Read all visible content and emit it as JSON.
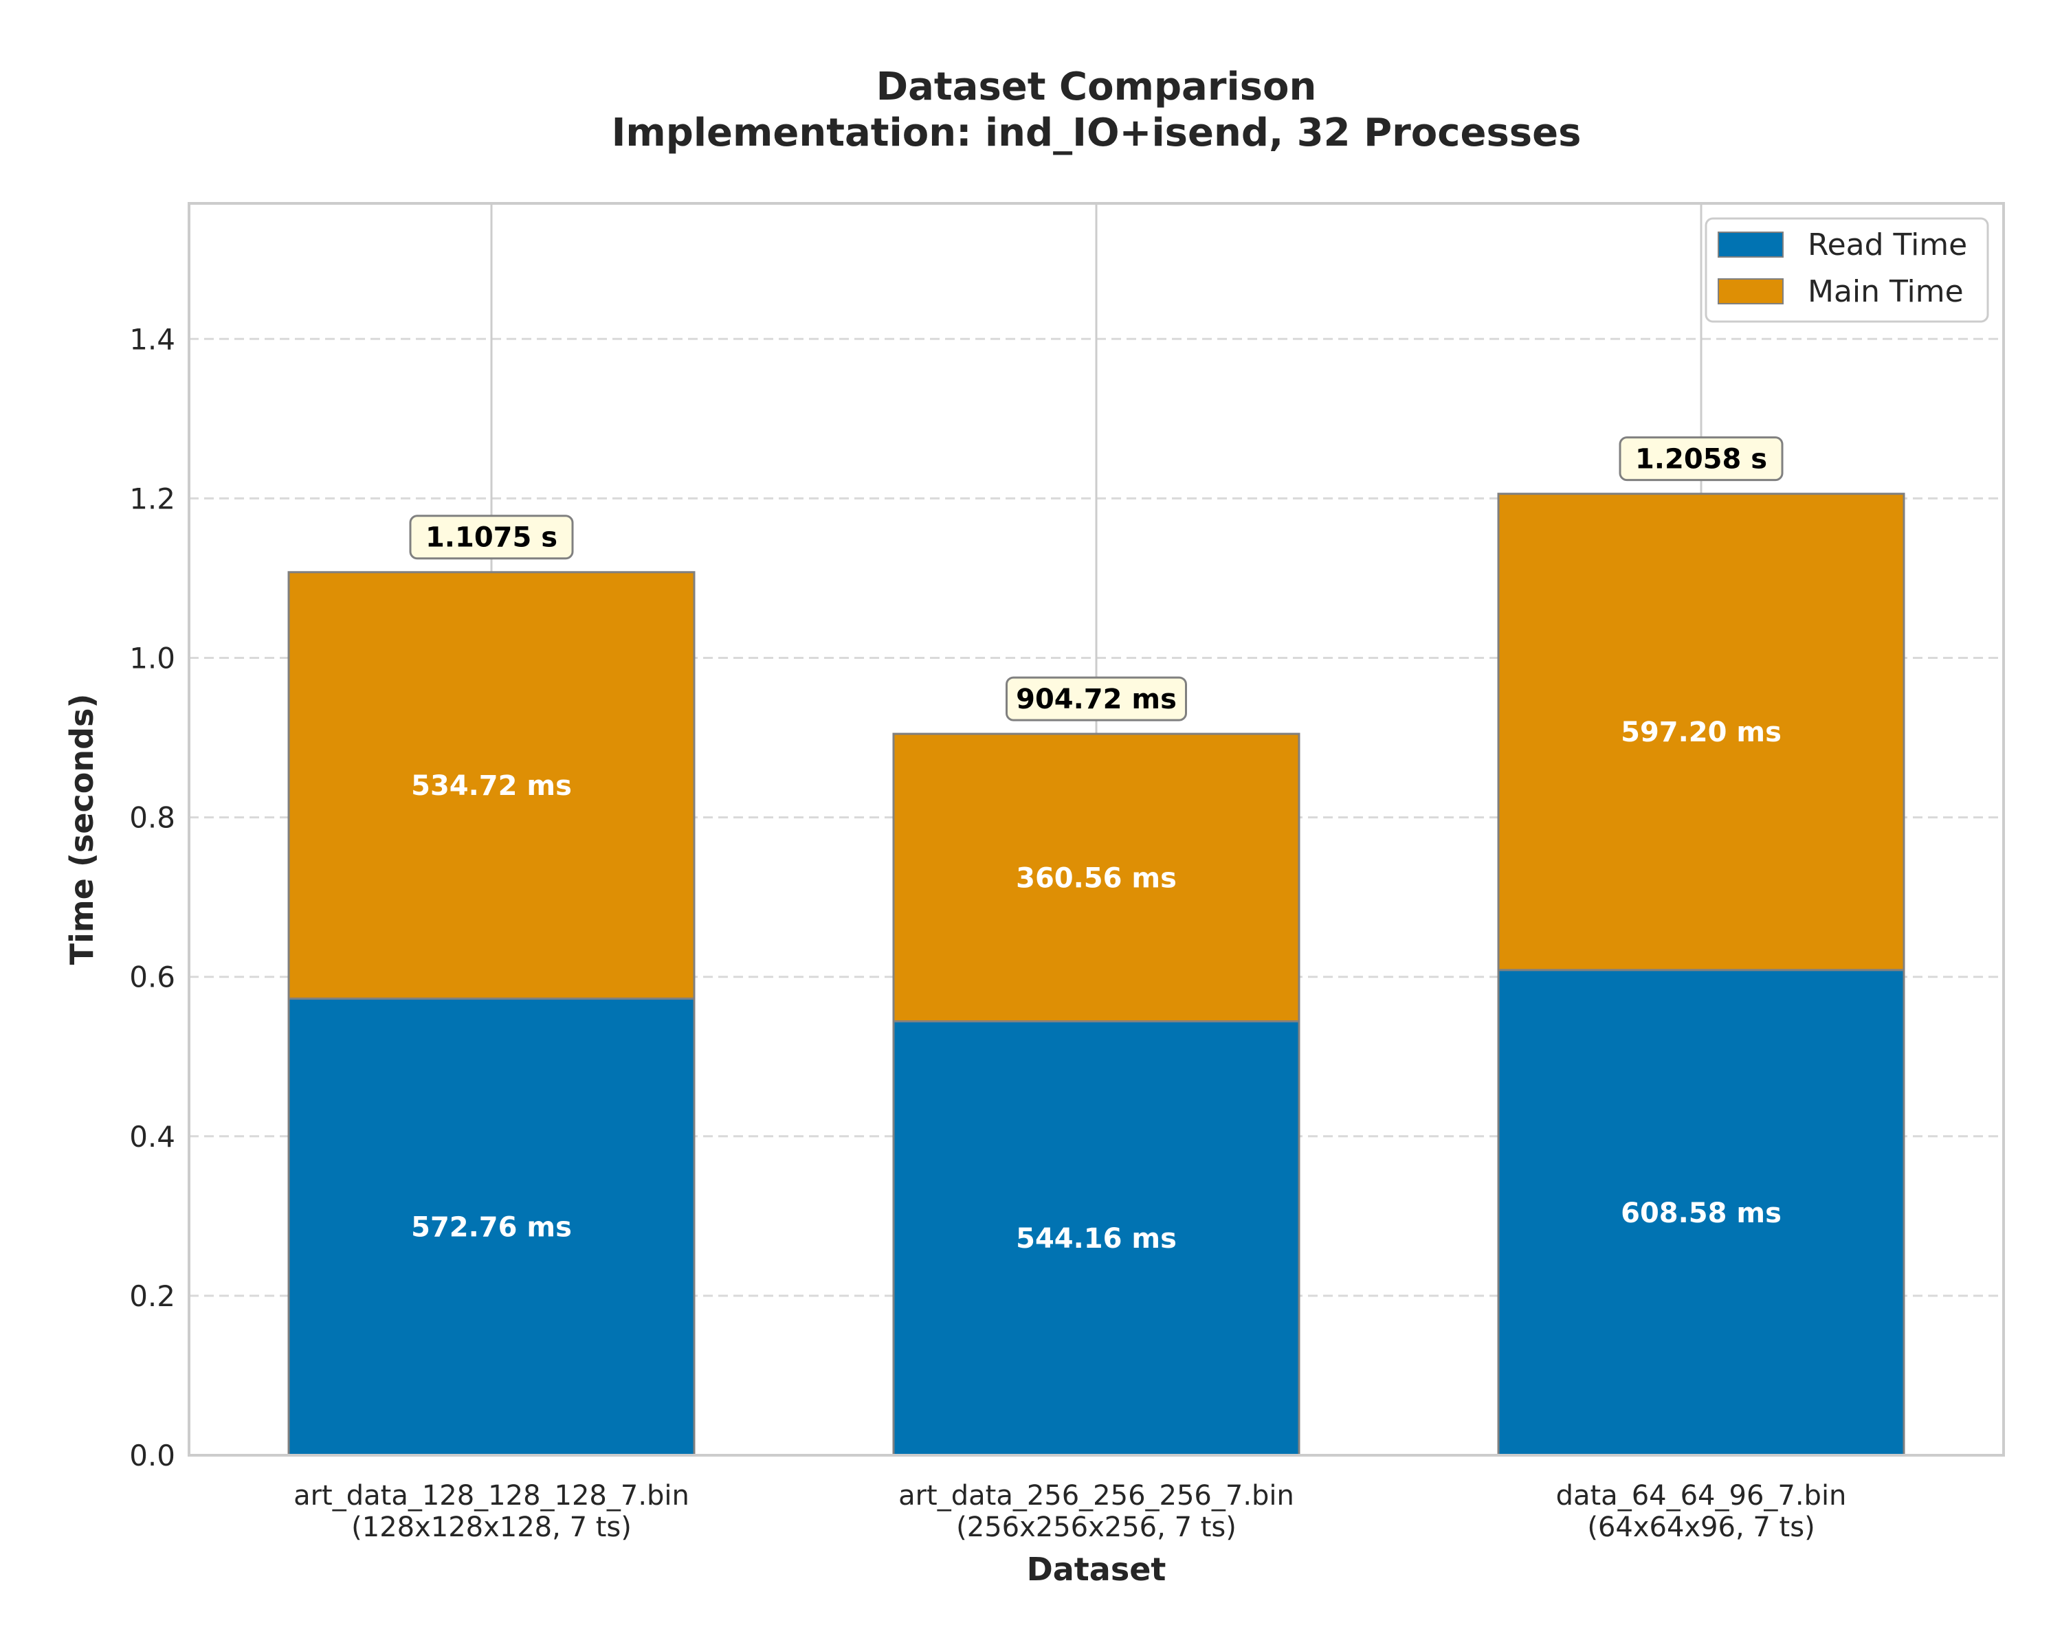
{
  "chart_data": {
    "type": "bar",
    "stacked": true,
    "title": "Dataset Comparison",
    "subtitle": "Implementation: ind_IO+isend, 32 Processes",
    "xlabel": "Dataset",
    "ylabel": "Time (seconds)",
    "ylim": [
      0,
      1.57
    ],
    "yticks": [
      "0.0",
      "0.2",
      "0.4",
      "0.6",
      "0.8",
      "1.0",
      "1.2",
      "1.4"
    ],
    "grid": "y-dashed",
    "legend_position": "top-right",
    "categories": [
      [
        "art_data_128_128_128_7.bin",
        "(128x128x128, 7 ts)"
      ],
      [
        "art_data_256_256_256_7.bin",
        "(256x256x256, 7 ts)"
      ],
      [
        "data_64_64_96_7.bin",
        "(64x64x96, 7 ts)"
      ]
    ],
    "series": [
      {
        "name": "Read Time",
        "color": "#0173b2",
        "values": [
          0.57276,
          0.54416,
          0.60858
        ],
        "labels": [
          "572.76 ms",
          "544.16 ms",
          "608.58 ms"
        ]
      },
      {
        "name": "Main Time",
        "color": "#de8f05",
        "values": [
          0.53472,
          0.36056,
          0.5972
        ],
        "labels": [
          "534.72 ms",
          "360.56 ms",
          "597.20 ms"
        ]
      }
    ],
    "totals": [
      1.1075,
      0.90472,
      1.2058
    ],
    "total_labels": [
      "1.1075 s",
      "904.72 ms",
      "1.2058 s"
    ],
    "annotation_box_color": "#fffbe0"
  }
}
